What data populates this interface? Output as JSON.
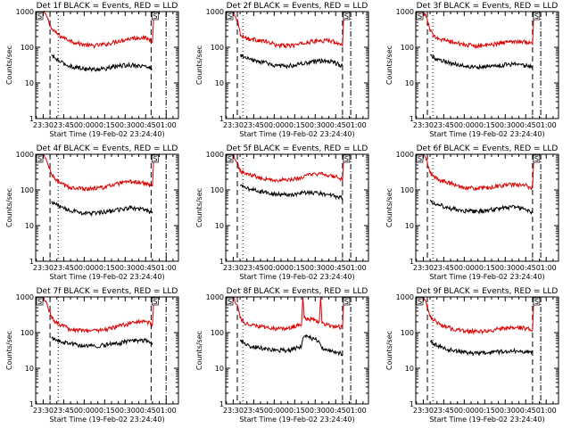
{
  "page": {
    "background": "#ffffff"
  },
  "colors": {
    "events": "#000000",
    "lld": "#dd0000",
    "axis": "#000000"
  },
  "chart_data": [
    {
      "type": "line",
      "title": "Det 1f  BLACK = Events,  RED = LLD",
      "xlabel": "Start Time (19-Feb-02 23:24:40)",
      "ylabel": "Counts/sec",
      "xticks": [
        "23:30",
        "23:45",
        "00:00",
        "00:15",
        "00:30",
        "00:45",
        "01:00"
      ],
      "xlim": [
        -5.5,
        99
      ],
      "yscale": "log",
      "ylim": [
        1,
        1000
      ],
      "yticks": [
        "1",
        "10",
        "100",
        "1000"
      ],
      "series": [
        {
          "name": "LLD",
          "color": "#dd0000",
          "x": [
            0,
            3,
            6,
            9,
            13,
            19,
            25,
            35,
            45,
            55,
            65,
            72,
            77,
            80,
            81
          ],
          "y": [
            1000,
            700,
            330,
            260,
            200,
            160,
            130,
            110,
            120,
            150,
            180,
            190,
            170,
            150,
            1000
          ]
        },
        {
          "name": "Events",
          "color": "#000000",
          "x": [
            6,
            9,
            13,
            19,
            25,
            35,
            45,
            55,
            65,
            72,
            77,
            80
          ],
          "y": [
            60,
            48,
            38,
            30,
            27,
            24,
            25,
            30,
            32,
            30,
            28,
            24
          ]
        }
      ],
      "markers": {
        "dashed_x": [
          5,
          79
        ],
        "dotted_x": [
          11
        ],
        "dash_dot_x": [
          90
        ]
      },
      "corner_labels": [
        "S",
        "S"
      ]
    },
    {
      "type": "line",
      "title": "Det 2f  BLACK = Events,  RED = LLD",
      "xlabel": "Start Time (19-Feb-02 23:24:40)",
      "ylabel": "Counts/sec",
      "xticks": [
        "23:30",
        "23:45",
        "00:00",
        "00:15",
        "00:30",
        "00:45",
        "01:00"
      ],
      "xlim": [
        -5.5,
        99
      ],
      "yscale": "log",
      "ylim": [
        1,
        1000
      ],
      "yticks": [
        "1",
        "10",
        "100",
        "1000"
      ],
      "series": [
        {
          "name": "LLD",
          "color": "#dd0000",
          "x": [
            0,
            3,
            5,
            8,
            12,
            18,
            25,
            32,
            40,
            48,
            55,
            62,
            68,
            72,
            76,
            78,
            80,
            81
          ],
          "y": [
            1000,
            600,
            250,
            190,
            170,
            160,
            140,
            115,
            110,
            120,
            140,
            150,
            155,
            150,
            140,
            120,
            110,
            1000
          ]
        },
        {
          "name": "Events",
          "color": "#000000",
          "x": [
            5,
            8,
            12,
            18,
            25,
            32,
            40,
            48,
            55,
            62,
            68,
            72,
            76,
            80
          ],
          "y": [
            60,
            52,
            45,
            40,
            36,
            30,
            30,
            33,
            37,
            40,
            42,
            40,
            35,
            30
          ]
        }
      ],
      "markers": {
        "dashed_x": [
          3,
          80
        ],
        "dotted_x": [
          7
        ],
        "dash_dot_x": [
          86
        ]
      },
      "corner_labels": [
        "S",
        "S"
      ]
    },
    {
      "type": "line",
      "title": "Det 3f  BLACK = Events,  RED = LLD",
      "xlabel": "Start Time (19-Feb-02 23:24:40)",
      "ylabel": "Counts/sec",
      "xticks": [
        "23:30",
        "23:45",
        "00:00",
        "00:15",
        "00:30",
        "00:45",
        "01:00"
      ],
      "xlim": [
        -5.5,
        99
      ],
      "yscale": "log",
      "ylim": [
        1,
        1000
      ],
      "yticks": [
        "1",
        "10",
        "100",
        "1000"
      ],
      "series": [
        {
          "name": "LLD",
          "color": "#dd0000",
          "x": [
            0,
            3,
            5,
            8,
            12,
            18,
            25,
            32,
            40,
            48,
            55,
            62,
            68,
            72,
            76,
            78,
            80,
            81
          ],
          "y": [
            1000,
            600,
            280,
            220,
            170,
            150,
            130,
            115,
            110,
            115,
            130,
            140,
            150,
            145,
            140,
            130,
            120,
            1000
          ]
        },
        {
          "name": "Events",
          "color": "#000000",
          "x": [
            5,
            8,
            12,
            18,
            25,
            32,
            40,
            48,
            55,
            62,
            68,
            72,
            76,
            80
          ],
          "y": [
            60,
            52,
            44,
            38,
            33,
            30,
            28,
            29,
            31,
            33,
            34,
            32,
            30,
            28
          ]
        }
      ],
      "markers": {
        "dashed_x": [
          3,
          80
        ],
        "dotted_x": [
          7
        ],
        "dash_dot_x": [
          86
        ]
      },
      "corner_labels": [
        "S",
        "S"
      ]
    },
    {
      "type": "line",
      "title": "Det 4f  BLACK = Events,  RED = LLD",
      "xlabel": "Start Time (19-Feb-02 23:24:40)",
      "ylabel": "Counts/sec",
      "xticks": [
        "23:30",
        "23:45",
        "00:00",
        "00:15",
        "00:30",
        "00:45",
        "01:00"
      ],
      "xlim": [
        -5.5,
        99
      ],
      "yscale": "log",
      "ylim": [
        1,
        1000
      ],
      "yticks": [
        "1",
        "10",
        "100",
        "1000"
      ],
      "series": [
        {
          "name": "LLD",
          "color": "#dd0000",
          "x": [
            0,
            3,
            6,
            9,
            13,
            19,
            25,
            35,
            45,
            55,
            65,
            72,
            77,
            80,
            81
          ],
          "y": [
            1000,
            600,
            280,
            200,
            150,
            120,
            110,
            110,
            120,
            150,
            170,
            160,
            140,
            130,
            1000
          ]
        },
        {
          "name": "Events",
          "color": "#000000",
          "x": [
            6,
            9,
            13,
            19,
            25,
            35,
            45,
            55,
            65,
            72,
            77,
            80
          ],
          "y": [
            45,
            40,
            33,
            28,
            24,
            22,
            24,
            28,
            32,
            30,
            26,
            22
          ]
        }
      ],
      "markers": {
        "dashed_x": [
          5,
          79
        ],
        "dotted_x": [
          11
        ],
        "dash_dot_x": [
          90
        ]
      },
      "corner_labels": [
        "S",
        "S"
      ]
    },
    {
      "type": "line",
      "title": "Det 5f  BLACK = Events,  RED = LLD",
      "xlabel": "Start Time (19-Feb-02 23:24:40)",
      "ylabel": "Counts/sec",
      "xticks": [
        "23:30",
        "23:45",
        "00:00",
        "00:15",
        "00:30",
        "00:45",
        "01:00"
      ],
      "xlim": [
        -5.5,
        99
      ],
      "yscale": "log",
      "ylim": [
        1,
        1000
      ],
      "yticks": [
        "1",
        "10",
        "100",
        "1000"
      ],
      "series": [
        {
          "name": "LLD",
          "color": "#dd0000",
          "x": [
            0,
            3,
            5,
            8,
            12,
            18,
            25,
            32,
            40,
            48,
            55,
            62,
            68,
            72,
            76,
            78,
            80,
            81
          ],
          "y": [
            1000,
            600,
            330,
            300,
            270,
            240,
            200,
            185,
            190,
            210,
            260,
            280,
            270,
            250,
            230,
            210,
            180,
            1000
          ]
        },
        {
          "name": "Events",
          "color": "#000000",
          "x": [
            5,
            8,
            12,
            18,
            25,
            32,
            40,
            48,
            55,
            62,
            68,
            72,
            76,
            80
          ],
          "y": [
            130,
            120,
            105,
            95,
            85,
            75,
            75,
            80,
            85,
            82,
            75,
            70,
            65,
            60
          ]
        }
      ],
      "markers": {
        "dashed_x": [
          3,
          80
        ],
        "dotted_x": [
          7
        ],
        "dash_dot_x": [
          86
        ]
      },
      "corner_labels": [
        "S",
        "S"
      ]
    },
    {
      "type": "line",
      "title": "Det 6f  BLACK = Events,  RED = LLD",
      "xlabel": "Start Time (19-Feb-02 23:24:40)",
      "ylabel": "Counts/sec",
      "xticks": [
        "23:30",
        "23:45",
        "00:00",
        "00:15",
        "00:30",
        "00:45",
        "01:00"
      ],
      "xlim": [
        -5.5,
        99
      ],
      "yscale": "log",
      "ylim": [
        1,
        1000
      ],
      "yticks": [
        "1",
        "10",
        "100",
        "1000"
      ],
      "series": [
        {
          "name": "LLD",
          "color": "#dd0000",
          "x": [
            0,
            3,
            5,
            8,
            12,
            18,
            25,
            32,
            40,
            48,
            55,
            62,
            68,
            72,
            76,
            78,
            80,
            81
          ],
          "y": [
            1000,
            600,
            300,
            230,
            190,
            160,
            130,
            115,
            110,
            115,
            130,
            140,
            140,
            135,
            130,
            120,
            110,
            1000
          ]
        },
        {
          "name": "Events",
          "color": "#000000",
          "x": [
            5,
            8,
            12,
            18,
            25,
            32,
            40,
            48,
            55,
            62,
            68,
            72,
            76,
            80
          ],
          "y": [
            50,
            45,
            38,
            32,
            28,
            25,
            25,
            27,
            30,
            32,
            33,
            30,
            27,
            24
          ]
        }
      ],
      "markers": {
        "dashed_x": [
          3,
          80
        ],
        "dotted_x": [
          7
        ],
        "dash_dot_x": [
          86
        ]
      },
      "corner_labels": [
        "S",
        "S"
      ]
    },
    {
      "type": "line",
      "title": "Det 7f  BLACK = Events,  RED = LLD",
      "xlabel": "Start Time (19-Feb-02 23:24:40)",
      "ylabel": "Counts/sec",
      "xticks": [
        "23:30",
        "23:45",
        "00:00",
        "00:15",
        "00:30",
        "00:45",
        "01:00"
      ],
      "xlim": [
        -5.5,
        99
      ],
      "yscale": "log",
      "ylim": [
        1,
        1000
      ],
      "yticks": [
        "1",
        "10",
        "100",
        "1000"
      ],
      "series": [
        {
          "name": "LLD",
          "color": "#dd0000",
          "x": [
            0,
            3,
            6,
            9,
            13,
            19,
            25,
            35,
            45,
            55,
            65,
            72,
            77,
            80,
            81
          ],
          "y": [
            1000,
            600,
            280,
            200,
            160,
            130,
            120,
            115,
            120,
            150,
            190,
            210,
            190,
            170,
            1000
          ]
        },
        {
          "name": "Events",
          "color": "#000000",
          "x": [
            6,
            9,
            13,
            19,
            25,
            35,
            45,
            55,
            65,
            72,
            77,
            80
          ],
          "y": [
            70,
            62,
            55,
            50,
            45,
            42,
            45,
            50,
            60,
            62,
            58,
            52
          ]
        }
      ],
      "markers": {
        "dashed_x": [
          5,
          79
        ],
        "dotted_x": [
          11
        ],
        "dash_dot_x": [
          90
        ]
      },
      "corner_labels": [
        "S",
        "S"
      ]
    },
    {
      "type": "line",
      "title": "Det 8f  BLACK = Events,  RED = LLD",
      "xlabel": "Start Time (19-Feb-02 23:24:40)",
      "ylabel": "Counts/sec",
      "xticks": [
        "23:30",
        "23:45",
        "00:00",
        "00:15",
        "00:30",
        "00:45",
        "01:00"
      ],
      "xlim": [
        -5.5,
        99
      ],
      "yscale": "log",
      "ylim": [
        1,
        1000
      ],
      "yticks": [
        "1",
        "10",
        "100",
        "1000"
      ],
      "series": [
        {
          "name": "LLD",
          "color": "#dd0000",
          "x": [
            0,
            3,
            5,
            8,
            12,
            18,
            25,
            32,
            40,
            47,
            50,
            51,
            52,
            55,
            60,
            63,
            64,
            65,
            68,
            72,
            76,
            80,
            81
          ],
          "y": [
            1000,
            600,
            260,
            190,
            160,
            150,
            140,
            130,
            130,
            160,
            170,
            1000,
            250,
            250,
            230,
            200,
            1000,
            180,
            170,
            160,
            150,
            140,
            1000
          ]
        },
        {
          "name": "Events",
          "color": "#000000",
          "x": [
            5,
            8,
            12,
            18,
            25,
            32,
            40,
            47,
            50,
            51,
            52,
            55,
            60,
            63,
            64,
            65,
            68,
            72,
            76,
            80
          ],
          "y": [
            60,
            50,
            42,
            38,
            35,
            32,
            32,
            38,
            42,
            70,
            80,
            75,
            65,
            55,
            45,
            35,
            32,
            30,
            28,
            25
          ]
        }
      ],
      "markers": {
        "dashed_x": [
          3,
          80
        ],
        "dotted_x": [
          7
        ],
        "dash_dot_x": [
          86
        ]
      },
      "corner_labels": [
        "S",
        "S"
      ]
    },
    {
      "type": "line",
      "title": "Det 9f  BLACK = Events,  RED = LLD",
      "xlabel": "Start Time (19-Feb-02 23:24:40)",
      "ylabel": "Counts/sec",
      "xticks": [
        "23:30",
        "23:45",
        "00:00",
        "00:15",
        "00:30",
        "00:45",
        "01:00"
      ],
      "xlim": [
        -5.5,
        99
      ],
      "yscale": "log",
      "ylim": [
        1,
        1000
      ],
      "yticks": [
        "1",
        "10",
        "100",
        "1000"
      ],
      "series": [
        {
          "name": "LLD",
          "color": "#dd0000",
          "x": [
            0,
            3,
            5,
            8,
            12,
            18,
            25,
            32,
            40,
            48,
            55,
            62,
            68,
            72,
            76,
            78,
            80,
            81
          ],
          "y": [
            1000,
            600,
            280,
            220,
            170,
            140,
            120,
            110,
            105,
            110,
            125,
            135,
            140,
            135,
            130,
            125,
            120,
            1000
          ]
        },
        {
          "name": "Events",
          "color": "#000000",
          "x": [
            5,
            8,
            12,
            18,
            25,
            32,
            40,
            48,
            55,
            62,
            68,
            72,
            76,
            80
          ],
          "y": [
            55,
            48,
            40,
            34,
            30,
            27,
            26,
            27,
            29,
            30,
            31,
            30,
            28,
            26
          ]
        }
      ],
      "markers": {
        "dashed_x": [
          3,
          80
        ],
        "dotted_x": [
          7
        ],
        "dash_dot_x": [
          86
        ]
      },
      "corner_labels": [
        "S",
        "S"
      ]
    }
  ]
}
